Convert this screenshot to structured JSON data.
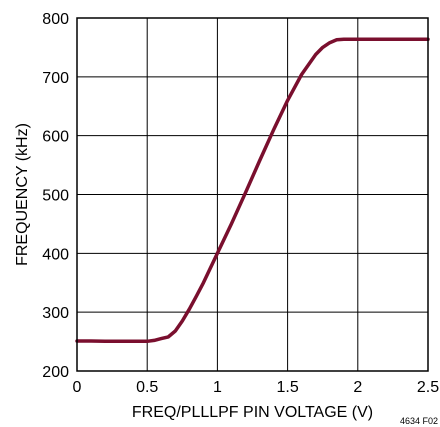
{
  "chart_data": {
    "type": "line",
    "title": "",
    "xlabel": "FREQ/PLLLPF PIN VOLTAGE (V)",
    "ylabel": "FREQUENCY (kHz)",
    "xlim": [
      0,
      2.5
    ],
    "ylim": [
      200,
      800
    ],
    "x_ticks": [
      0,
      0.5,
      1,
      1.5,
      2,
      2.5
    ],
    "x_tick_labels": [
      "0",
      "0.5",
      "1",
      "1.5",
      "2",
      "2.5"
    ],
    "y_ticks": [
      200,
      300,
      400,
      500,
      600,
      700,
      800
    ],
    "y_tick_labels": [
      "200",
      "300",
      "400",
      "500",
      "600",
      "700",
      "800"
    ],
    "grid": true,
    "legend": "none",
    "line_color": "#7a0f2e",
    "series": [
      {
        "x": [
          0,
          0.1,
          0.2,
          0.3,
          0.4,
          0.5,
          0.55,
          0.6,
          0.65,
          0.7,
          0.75,
          0.8,
          0.85,
          0.9,
          0.95,
          1.0,
          1.1,
          1.2,
          1.3,
          1.4,
          1.5,
          1.6,
          1.7,
          1.75,
          1.8,
          1.85,
          1.9,
          1.95,
          2.0,
          2.1,
          2.2,
          2.3,
          2.4,
          2.5
        ],
        "y": [
          251,
          251,
          250.5,
          250.5,
          250.5,
          250.5,
          252,
          255,
          258,
          268,
          285,
          305,
          327,
          350,
          375,
          400,
          450,
          503,
          557,
          610,
          660,
          704,
          738,
          750,
          758,
          763,
          764,
          764,
          764,
          764,
          764,
          764,
          764,
          764
        ]
      }
    ],
    "figure_id": "4634 F02"
  }
}
